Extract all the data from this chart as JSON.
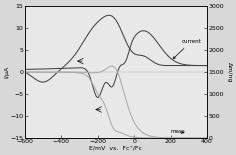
{
  "title": "",
  "xlabel": "E/mV  vs.  Fc⁺/Fc",
  "ylabel_left": "I/µA",
  "ylabel_right": "Δm/ng",
  "xlim": [
    -600,
    400
  ],
  "ylim_left": [
    -15,
    15
  ],
  "ylim_right": [
    0,
    3000
  ],
  "xticks": [
    -600,
    -400,
    -200,
    0,
    200,
    400
  ],
  "yticks_left": [
    -15,
    -10,
    -5,
    0,
    5,
    10,
    15
  ],
  "yticks_right": [
    0,
    500,
    1000,
    1500,
    2000,
    2500,
    3000
  ],
  "current_color": "#444444",
  "mass_color": "#aaaaaa",
  "background": "#e8e8e8",
  "annotation_current": "current",
  "annotation_mass": "mass",
  "figsize": [
    2.36,
    1.55
  ],
  "dpi": 100
}
